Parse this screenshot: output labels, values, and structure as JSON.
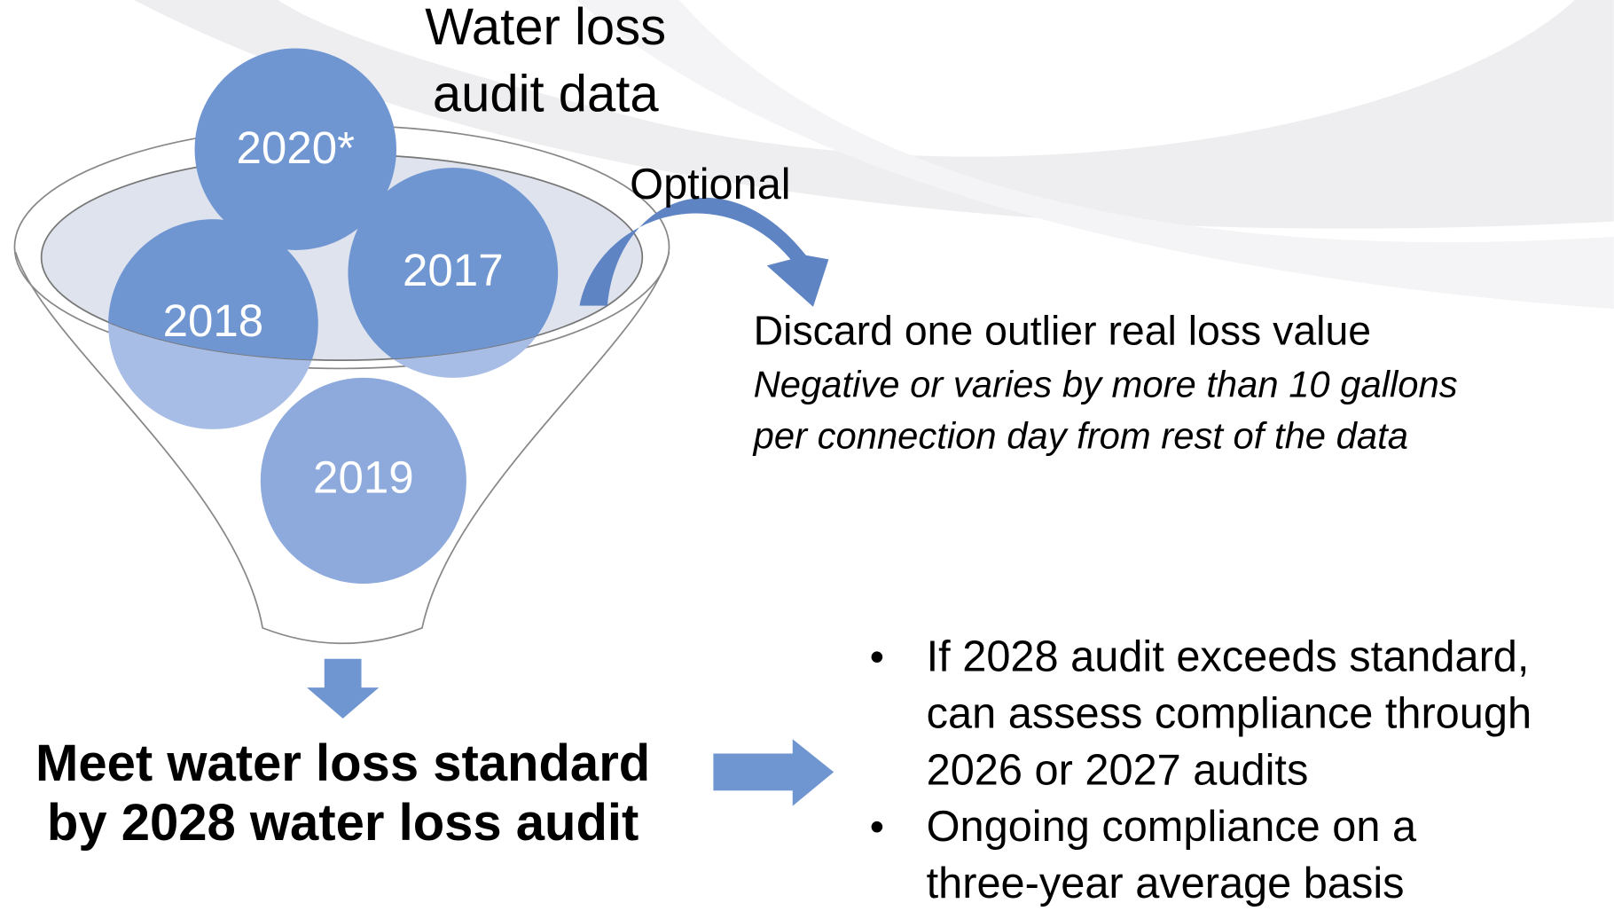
{
  "funnel": {
    "title": [
      "Water loss",
      "audit data"
    ],
    "years": [
      "2020*",
      "2017",
      "2018",
      "2019"
    ]
  },
  "optional": {
    "label": "Optional",
    "heading": "Discard one outlier real loss value",
    "note": [
      "Negative or varies by more than 10 gallons",
      "per connection day from rest of the data"
    ]
  },
  "outcome": {
    "statement": [
      "Meet water loss standard",
      "by 2028 water loss audit"
    ]
  },
  "bullets": [
    [
      "If 2028 audit exceeds standard,",
      "can assess compliance through",
      "2026 or 2027 audits"
    ],
    [
      "Ongoing compliance on a",
      "three-year average basis"
    ]
  ]
}
